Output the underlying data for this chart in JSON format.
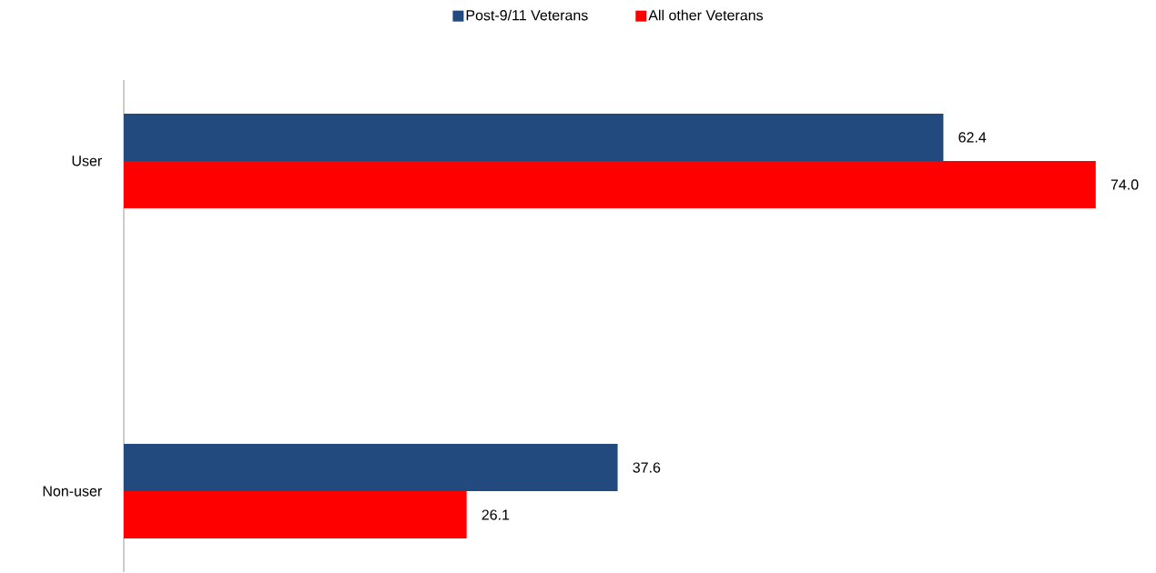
{
  "chart_data": {
    "type": "bar",
    "orientation": "horizontal",
    "categories": [
      "User",
      "Non-user"
    ],
    "series": [
      {
        "name": "Post-9/11 Veterans",
        "color": "#234a7e",
        "values": [
          62.4,
          37.6
        ],
        "value_labels": [
          "62.4",
          "37.6"
        ]
      },
      {
        "name": "All other Veterans",
        "color": "#ff0000",
        "values": [
          74.0,
          26.1
        ],
        "value_labels": [
          "74.0",
          "26.1"
        ]
      }
    ],
    "legend": "top"
  }
}
